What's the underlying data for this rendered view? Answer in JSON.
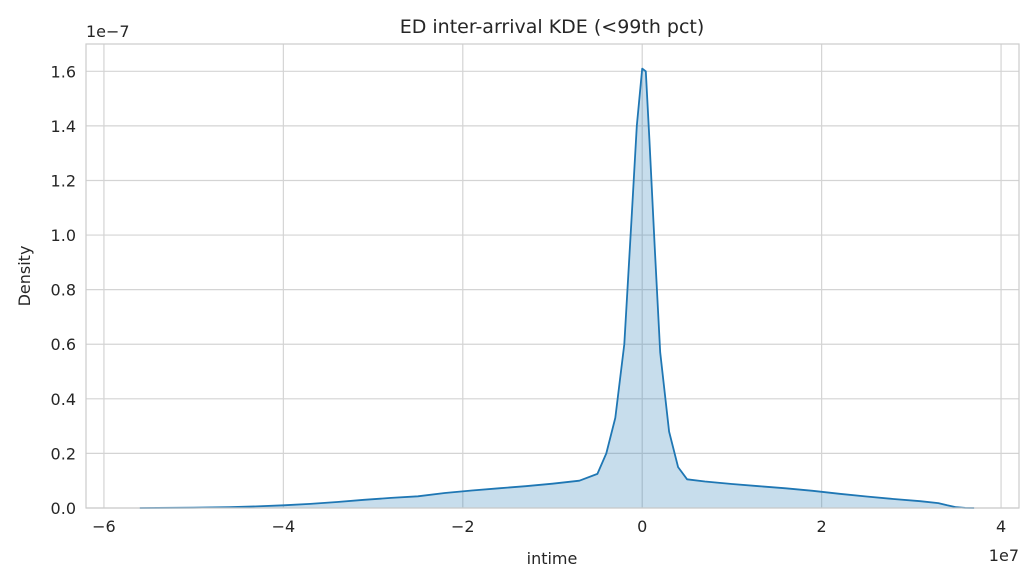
{
  "chart_data": {
    "type": "area",
    "title": "ED inter-arrival KDE (<99th pct)",
    "xlabel": "intime",
    "ylabel": "Density",
    "x_offset_label": "1e7",
    "y_offset_label": "1e−7",
    "xlim": [
      -6.2,
      4.2
    ],
    "ylim": [
      0,
      1.7
    ],
    "x_ticks": [
      -6,
      -4,
      -2,
      0,
      2,
      4
    ],
    "x_tick_labels": [
      "−6",
      "−4",
      "−2",
      "0",
      "2",
      "4"
    ],
    "y_ticks": [
      0.0,
      0.2,
      0.4,
      0.6,
      0.8,
      1.0,
      1.2,
      1.4,
      1.6
    ],
    "y_tick_labels": [
      "0.0",
      "0.2",
      "0.4",
      "0.6",
      "0.8",
      "1.0",
      "1.2",
      "1.4",
      "1.6"
    ],
    "grid": true,
    "colors": {
      "line": "#1f77b4",
      "fill": "#1f77b4",
      "grid": "#d4d4d4"
    },
    "series": [
      {
        "x": [
          -5.6,
          -5.0,
          -4.6,
          -4.3,
          -4.0,
          -3.7,
          -3.4,
          -3.1,
          -2.8,
          -2.5,
          -2.2,
          -1.9,
          -1.6,
          -1.3,
          -1.0,
          -0.7,
          -0.5,
          -0.4,
          -0.3,
          -0.2,
          -0.12,
          -0.06,
          0.0,
          0.04,
          0.08,
          0.14,
          0.2,
          0.3,
          0.4,
          0.5,
          0.7,
          1.0,
          1.3,
          1.6,
          1.9,
          2.2,
          2.5,
          2.8,
          3.1,
          3.3,
          3.4,
          3.5,
          3.6,
          3.7
        ],
        "y": [
          0.0,
          0.001,
          0.003,
          0.006,
          0.01,
          0.015,
          0.022,
          0.03,
          0.037,
          0.043,
          0.055,
          0.064,
          0.072,
          0.08,
          0.089,
          0.1,
          0.125,
          0.2,
          0.33,
          0.6,
          1.05,
          1.4,
          1.61,
          1.6,
          1.35,
          0.95,
          0.57,
          0.28,
          0.15,
          0.105,
          0.097,
          0.088,
          0.08,
          0.072,
          0.063,
          0.052,
          0.042,
          0.033,
          0.025,
          0.018,
          0.01,
          0.003,
          0.0005,
          0.0
        ]
      }
    ]
  }
}
